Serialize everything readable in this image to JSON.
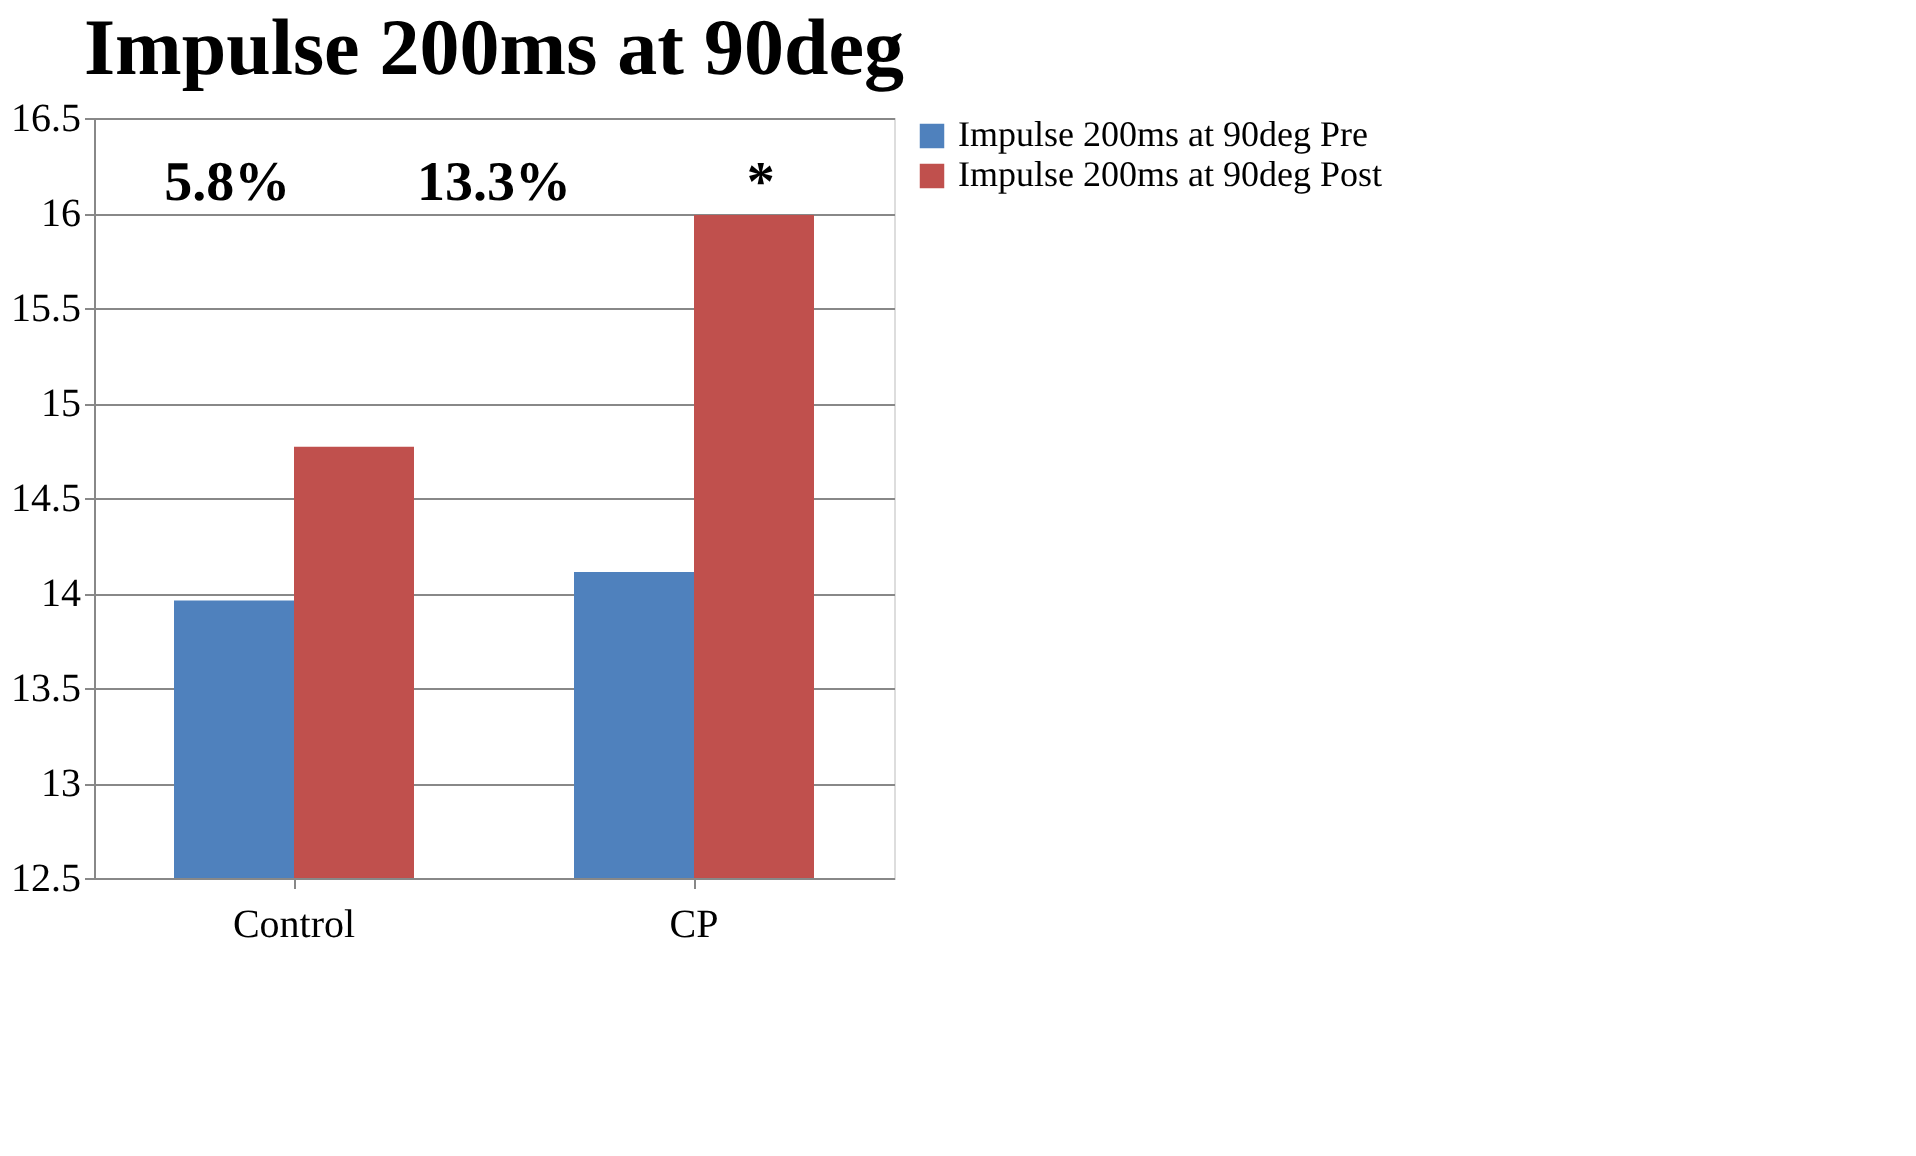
{
  "chart_data": {
    "type": "bar",
    "title": "Impulse 200ms at 90deg",
    "categories": [
      "Control",
      "CP"
    ],
    "series": [
      {
        "name": "Impulse 200ms at 90deg Pre",
        "color": "#4f81bd",
        "values": [
          13.96,
          14.11
        ]
      },
      {
        "name": "Impulse 200ms at 90deg Post",
        "color": "#c0504d",
        "values": [
          14.77,
          15.99
        ]
      }
    ],
    "ylim": [
      12.5,
      16.5
    ],
    "yticks": [
      12.5,
      13,
      13.5,
      14,
      14.5,
      15,
      15.5,
      16,
      16.5
    ],
    "grid": "y",
    "legend": "right",
    "annotations": [
      "5.8%",
      "13.3%",
      "*"
    ]
  }
}
